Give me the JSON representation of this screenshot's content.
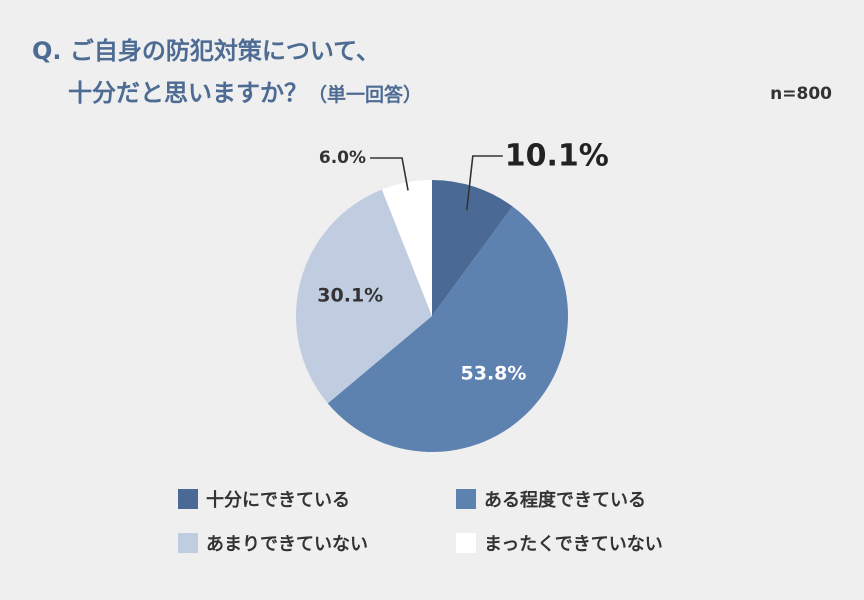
{
  "chart_data": {
    "type": "pie",
    "title_line1": "Q. ご自身の防犯対策について、",
    "title_line2": "十分だと思いますか？",
    "title_note": "（単一回答）",
    "sample_size": "n=800",
    "categories": [
      "十分にできている",
      "ある程度できている",
      "あまりできていない",
      "まったくできていない"
    ],
    "values": [
      10.1,
      53.8,
      30.1,
      6.0
    ],
    "value_labels": [
      "10.1%",
      "53.8%",
      "30.1%",
      "6.0%"
    ],
    "colors": [
      "#4a6a95",
      "#5e82b0",
      "#c0cde0",
      "#ffffff"
    ],
    "label_colors": [
      "#222222",
      "#ffffff",
      "#333333",
      "#333333"
    ],
    "start_angle": "12 o'clock",
    "direction": "clockwise"
  }
}
